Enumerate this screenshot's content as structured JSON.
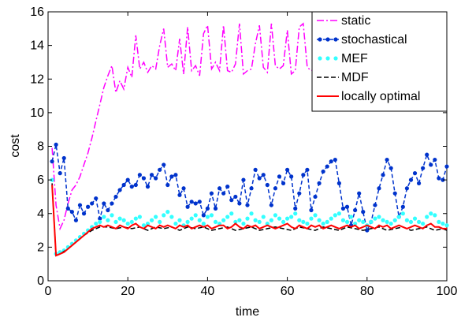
{
  "chart_data": {
    "type": "line",
    "title": "",
    "xlabel": "time",
    "ylabel": "cost",
    "xlim": [
      0,
      100
    ],
    "ylim": [
      0,
      16
    ],
    "xticks": [
      0,
      20,
      40,
      60,
      80,
      100
    ],
    "yticks": [
      0,
      2,
      4,
      6,
      8,
      10,
      12,
      14,
      16
    ],
    "grid": false,
    "legend_position": "top-right",
    "series": [
      {
        "name": "static",
        "color": "#ff00ff",
        "style": "dashdot",
        "x": [
          1,
          2,
          3,
          4,
          5,
          6,
          7,
          8,
          9,
          10,
          11,
          12,
          13,
          14,
          15,
          16,
          17,
          18,
          19,
          20,
          21,
          22,
          23,
          24,
          25,
          26,
          27,
          28,
          29,
          30,
          31,
          32,
          33,
          34,
          35,
          36,
          37,
          38,
          39,
          40,
          41,
          42,
          43,
          44,
          45,
          46,
          47,
          48,
          49,
          50,
          51,
          52,
          53,
          54,
          55,
          56,
          57,
          58,
          59,
          60,
          61,
          62,
          63,
          64,
          65,
          66,
          67,
          68
        ],
        "y": [
          7.9,
          4.5,
          3.1,
          3.6,
          4.6,
          5.4,
          5.7,
          6.2,
          6.9,
          7.6,
          8.5,
          9.5,
          10.5,
          11.5,
          12.2,
          12.8,
          11.2,
          11.9,
          11.4,
          12.7,
          12.1,
          14.6,
          12.6,
          13.0,
          12.4,
          12.8,
          12.6,
          14.0,
          15.0,
          12.7,
          12.9,
          12.5,
          14.4,
          12.3,
          15.1,
          12.5,
          12.8,
          12.2,
          14.7,
          15.2,
          12.6,
          13.0,
          12.5,
          15.2,
          12.5,
          12.4,
          12.9,
          15.3,
          12.3,
          12.5,
          12.6,
          14.1,
          15.2,
          12.7,
          12.4,
          15.3,
          12.8,
          12.6,
          12.8,
          14.9,
          12.3,
          12.5,
          15.1,
          15.3,
          12.7,
          12.5,
          12.6,
          12.9
        ]
      },
      {
        "name": "stochastical",
        "color": "#0033cc",
        "style": "dashed-dots",
        "x": [
          1,
          2,
          3,
          4,
          5,
          6,
          7,
          8,
          9,
          10,
          11,
          12,
          13,
          14,
          15,
          16,
          17,
          18,
          19,
          20,
          21,
          22,
          23,
          24,
          25,
          26,
          27,
          28,
          29,
          30,
          31,
          32,
          33,
          34,
          35,
          36,
          37,
          38,
          39,
          40,
          41,
          42,
          43,
          44,
          45,
          46,
          47,
          48,
          49,
          50,
          51,
          52,
          53,
          54,
          55,
          56,
          57,
          58,
          59,
          60,
          61,
          62,
          63,
          64,
          65,
          66,
          67,
          68,
          69,
          70,
          71,
          72,
          73,
          74,
          75,
          76,
          77,
          78,
          79,
          80,
          81,
          82,
          83,
          84,
          85,
          86,
          87,
          88,
          89,
          90,
          91,
          92,
          93,
          94,
          95,
          96,
          97,
          98,
          99,
          100
        ],
        "y": [
          7.1,
          8.1,
          6.4,
          7.3,
          4.3,
          4.1,
          3.6,
          4.5,
          4.0,
          4.4,
          4.6,
          4.9,
          3.7,
          4.6,
          4.2,
          4.6,
          5.0,
          5.4,
          5.7,
          6.0,
          5.6,
          5.7,
          6.3,
          6.1,
          5.6,
          6.3,
          6.1,
          6.6,
          6.9,
          5.7,
          6.2,
          6.3,
          5.1,
          5.5,
          4.4,
          4.7,
          4.6,
          4.7,
          3.9,
          4.3,
          5.2,
          4.3,
          5.5,
          5.2,
          5.6,
          4.8,
          5.0,
          4.6,
          6.0,
          4.5,
          5.5,
          6.6,
          6.1,
          6.3,
          5.7,
          4.5,
          5.5,
          6.2,
          5.8,
          6.6,
          6.2,
          4.3,
          5.2,
          6.3,
          6.6,
          4.2,
          5.0,
          5.8,
          6.5,
          6.8,
          7.1,
          7.2,
          5.8,
          4.3,
          4.4,
          3.3,
          4.2,
          5.2,
          4.1,
          3.0,
          3.5,
          4.5,
          5.5,
          6.3,
          7.2,
          6.7,
          5.2,
          3.8,
          4.4,
          5.5,
          6.0,
          6.4,
          5.8,
          6.7,
          7.5,
          6.9,
          7.2,
          6.1,
          6.0,
          6.8
        ]
      },
      {
        "name": "MEF",
        "color": "#33ffff",
        "style": "dots",
        "x": [
          1,
          2,
          3,
          4,
          5,
          6,
          7,
          8,
          9,
          10,
          11,
          12,
          13,
          14,
          15,
          16,
          17,
          18,
          19,
          20,
          21,
          22,
          23,
          24,
          25,
          26,
          27,
          28,
          29,
          30,
          31,
          32,
          33,
          34,
          35,
          36,
          37,
          38,
          39,
          40,
          41,
          42,
          43,
          44,
          45,
          46,
          47,
          48,
          49,
          50,
          51,
          52,
          53,
          54,
          55,
          56,
          57,
          58,
          59,
          60,
          61,
          62,
          63,
          64,
          65,
          66,
          67,
          68,
          69,
          70,
          71,
          72,
          73,
          74,
          75,
          76,
          77,
          78,
          79,
          80,
          81,
          82,
          83,
          84,
          85,
          86,
          87,
          88,
          89,
          90,
          91,
          92,
          93,
          94,
          95,
          96,
          97,
          98,
          99,
          100
        ],
        "y": [
          6.0,
          1.6,
          1.7,
          1.8,
          2.0,
          2.2,
          2.4,
          2.6,
          2.8,
          3.0,
          3.2,
          3.4,
          3.5,
          3.8,
          3.6,
          3.9,
          3.5,
          3.7,
          3.6,
          3.4,
          3.5,
          3.7,
          3.8,
          3.3,
          3.4,
          3.6,
          3.8,
          3.5,
          3.9,
          4.1,
          3.8,
          3.4,
          3.6,
          3.3,
          3.5,
          3.7,
          3.9,
          3.6,
          3.4,
          3.8,
          3.9,
          3.5,
          3.4,
          3.6,
          3.8,
          4.0,
          3.5,
          3.6,
          3.4,
          3.7,
          4.0,
          3.6,
          3.5,
          3.8,
          3.4,
          3.6,
          3.9,
          3.7,
          3.5,
          3.7,
          3.8,
          4.0,
          3.6,
          3.5,
          3.4,
          3.7,
          3.9,
          3.6,
          3.4,
          3.5,
          3.7,
          3.9,
          4.0,
          3.6,
          3.5,
          3.8,
          3.4,
          3.6,
          3.5,
          3.3,
          3.5,
          3.7,
          3.8,
          3.6,
          3.5,
          3.4,
          3.6,
          3.8,
          4.0,
          3.6,
          3.5,
          3.7,
          3.5,
          3.4,
          3.8,
          4.0,
          3.9,
          3.5,
          3.4,
          3.3
        ]
      },
      {
        "name": "MDF",
        "color": "#000000",
        "style": "dashed",
        "x": [
          1,
          2,
          3,
          5,
          7,
          9,
          11,
          13,
          15,
          17,
          19,
          21,
          23,
          25,
          27,
          29,
          31,
          33,
          35,
          37,
          39,
          41,
          43,
          45,
          47,
          49,
          51,
          53,
          55,
          57,
          59,
          61,
          63,
          65,
          67,
          69,
          71,
          73,
          75,
          77,
          79,
          81,
          83,
          85,
          87,
          89,
          91,
          93,
          95,
          97,
          99,
          100
        ],
        "y": [
          5.8,
          1.5,
          1.6,
          1.9,
          2.3,
          2.7,
          3.0,
          3.2,
          3.2,
          3.1,
          3.2,
          3.1,
          3.2,
          3.0,
          3.2,
          3.1,
          3.2,
          3.0,
          3.2,
          3.1,
          3.2,
          3.0,
          3.1,
          3.2,
          3.0,
          3.1,
          3.2,
          3.0,
          3.1,
          3.2,
          3.1,
          3.0,
          3.2,
          3.1,
          3.0,
          3.2,
          3.1,
          3.0,
          3.2,
          3.1,
          3.0,
          3.1,
          3.2,
          3.0,
          3.1,
          3.2,
          3.0,
          3.1,
          3.2,
          3.0,
          3.1,
          3.0
        ]
      },
      {
        "name": "locally optimal",
        "color": "#ff0000",
        "style": "solid",
        "x": [
          1,
          2,
          3,
          4,
          5,
          6,
          7,
          8,
          9,
          10,
          11,
          12,
          13,
          14,
          15,
          16,
          17,
          18,
          19,
          20,
          21,
          22,
          23,
          24,
          25,
          26,
          27,
          28,
          29,
          30,
          31,
          32,
          33,
          34,
          35,
          36,
          37,
          38,
          39,
          40,
          41,
          42,
          43,
          44,
          45,
          46,
          47,
          48,
          49,
          50,
          51,
          52,
          53,
          54,
          55,
          56,
          57,
          58,
          59,
          60,
          61,
          62,
          63,
          64,
          65,
          66,
          67,
          68,
          69,
          70,
          71,
          72,
          73,
          74,
          75,
          76,
          77,
          78,
          79,
          80,
          81,
          82,
          83,
          84,
          85,
          86,
          87,
          88,
          89,
          90,
          91,
          92,
          93,
          94,
          95,
          96,
          97,
          98,
          99,
          100
        ],
        "y": [
          5.7,
          1.5,
          1.6,
          1.7,
          1.9,
          2.1,
          2.3,
          2.5,
          2.7,
          2.9,
          3.1,
          3.2,
          3.3,
          3.2,
          3.3,
          3.2,
          3.1,
          3.3,
          3.2,
          3.1,
          3.3,
          3.4,
          3.2,
          3.1,
          3.3,
          3.2,
          3.1,
          3.3,
          3.2,
          3.3,
          3.2,
          3.1,
          3.3,
          3.2,
          3.3,
          3.1,
          3.2,
          3.3,
          3.2,
          3.3,
          3.1,
          3.2,
          3.3,
          3.3,
          3.1,
          3.2,
          3.4,
          3.2,
          3.1,
          3.3,
          3.2,
          3.3,
          3.1,
          3.2,
          3.3,
          3.2,
          3.1,
          3.2,
          3.3,
          3.4,
          3.2,
          3.1,
          3.3,
          3.2,
          3.1,
          3.3,
          3.2,
          3.3,
          3.1,
          3.2,
          3.3,
          3.2,
          3.1,
          3.2,
          3.3,
          3.2,
          3.3,
          3.1,
          3.2,
          3.3,
          3.2,
          3.1,
          3.3,
          3.2,
          3.3,
          3.1,
          3.2,
          3.3,
          3.2,
          3.1,
          3.2,
          3.3,
          3.2,
          3.1,
          3.3,
          3.4,
          3.2,
          3.2,
          3.1,
          3.1
        ]
      }
    ]
  }
}
